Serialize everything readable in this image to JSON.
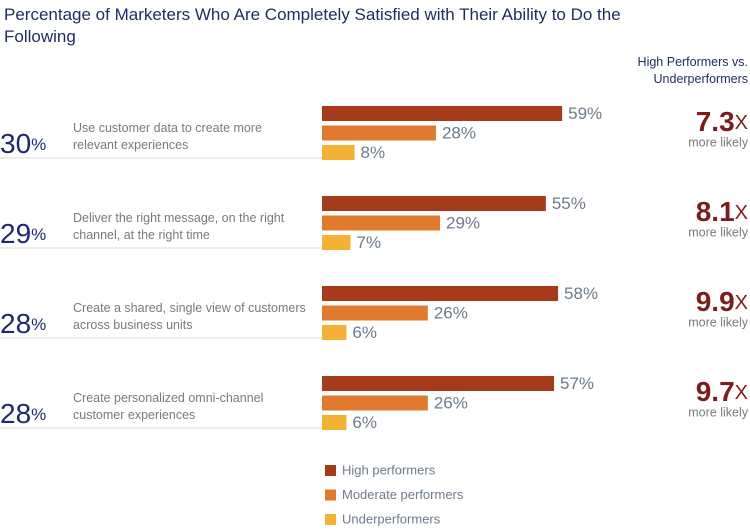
{
  "chart_data": {
    "type": "bar",
    "orientation": "horizontal",
    "title": "Percentage of Marketers Who Are Completely Satisfied with Their Ability to Do the Following",
    "side_header": "High Performers vs. Underperformers",
    "categories": [
      "Use customer data to create more relevant experiences",
      "Deliver the right message, on the right channel, at the right time",
      "Create a shared, single view of customers across business units",
      "Create personalized omni-channel customer experiences"
    ],
    "overall": {
      "values": [
        30,
        29,
        28,
        28
      ],
      "value_labels": [
        "30%",
        "29%",
        "28%",
        "28%"
      ],
      "color": "#1d2a6e"
    },
    "series": [
      {
        "name": "High performers",
        "color": "#a63b1c",
        "values": [
          59,
          55,
          58,
          57
        ],
        "value_labels": [
          "59%",
          "55%",
          "58%",
          "57%"
        ]
      },
      {
        "name": "Moderate performers",
        "color": "#e07a2f",
        "values": [
          28,
          29,
          26,
          26
        ],
        "value_labels": [
          "28%",
          "29%",
          "26%",
          "26%"
        ]
      },
      {
        "name": "Underperformers",
        "color": "#f3b136",
        "values": [
          8,
          7,
          6,
          6
        ],
        "value_labels": [
          "8%",
          "7%",
          "6%",
          "6%"
        ]
      }
    ],
    "multiplier": {
      "values": [
        7.3,
        8.1,
        9.9,
        9.7
      ],
      "value_labels": [
        "7.3X",
        "8.1X",
        "9.9X",
        "9.7X"
      ],
      "note": "more likely",
      "color": "#7b1d1d"
    },
    "xlim": [
      0,
      100
    ],
    "legend": "bottom"
  }
}
